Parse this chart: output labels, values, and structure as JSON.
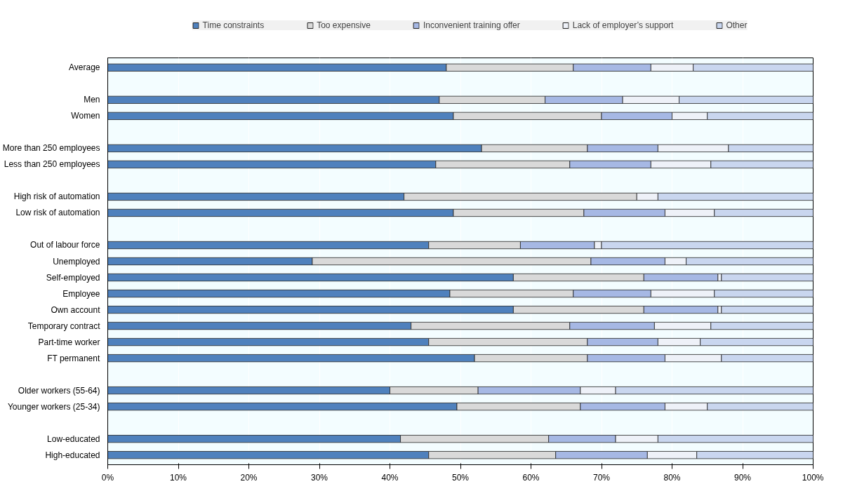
{
  "chart_data": {
    "type": "bar",
    "orientation": "horizontal",
    "stacked": true,
    "categories": [
      "Average",
      null,
      "Men",
      "Women",
      null,
      "More than 250 employees",
      "Less than 250 employees",
      null,
      "High risk of automation",
      "Low risk of automation",
      null,
      "Out of labour force",
      "Unemployed",
      "Self-employed",
      "Employee",
      "Own account",
      "Temporary contract",
      "Part-time worker",
      "FT permanent",
      null,
      "Older workers (55-64)",
      "Younger workers (25-34)",
      null,
      "Low-educated",
      "High-educated"
    ],
    "series": [
      {
        "name": "Time constraints",
        "color": "#4f81bd",
        "values": [
          48,
          null,
          47,
          49,
          null,
          53,
          46.5,
          null,
          42,
          49,
          null,
          45.5,
          29,
          57.5,
          48.5,
          57.5,
          43,
          45.5,
          52,
          null,
          40,
          49.5,
          null,
          41.5,
          45.5
        ]
      },
      {
        "name": "Too expensive",
        "color": "#d9d9d9",
        "values": [
          18,
          null,
          15,
          21,
          null,
          15,
          19,
          null,
          33,
          18.5,
          null,
          13,
          39.5,
          18.5,
          17.5,
          18.5,
          22.5,
          22.5,
          16,
          null,
          12.5,
          17.5,
          null,
          21,
          18
        ]
      },
      {
        "name": "Inconvenient training offer",
        "color": "#a6b8e4",
        "values": [
          11,
          null,
          11,
          10,
          null,
          10,
          11.5,
          null,
          0,
          11.5,
          null,
          10.5,
          10.5,
          10.5,
          11,
          10.5,
          12,
          10,
          11,
          null,
          14.5,
          12,
          null,
          9.5,
          13
        ]
      },
      {
        "name": "Lack of employer’s support",
        "color": "#eef1f8",
        "values": [
          6,
          null,
          8,
          5,
          null,
          10,
          8.5,
          null,
          3,
          7,
          null,
          1,
          3,
          0.5,
          9,
          0.5,
          8,
          6,
          8,
          null,
          5,
          6,
          null,
          6,
          7
        ]
      },
      {
        "name": "Other",
        "color": "#c9d6ef",
        "values": [
          17,
          null,
          19,
          15,
          null,
          12,
          14.5,
          null,
          22,
          14,
          null,
          30,
          18,
          13,
          14,
          13,
          14.5,
          16,
          13,
          null,
          28,
          15,
          null,
          22,
          16.5
        ]
      }
    ],
    "xlim": [
      0,
      100
    ],
    "xticks": [
      {
        "value": 0,
        "label": "0%"
      },
      {
        "value": 10,
        "label": "10%"
      },
      {
        "value": 20,
        "label": "20%"
      },
      {
        "value": 30,
        "label": "30%"
      },
      {
        "value": 40,
        "label": "40%"
      },
      {
        "value": 50,
        "label": "50%"
      },
      {
        "value": 60,
        "label": "60%"
      },
      {
        "value": 70,
        "label": "70%"
      },
      {
        "value": 80,
        "label": "80%"
      },
      {
        "value": 90,
        "label": "90%"
      },
      {
        "value": 100,
        "label": "100%"
      }
    ],
    "grid": "x",
    "legend": "top"
  }
}
